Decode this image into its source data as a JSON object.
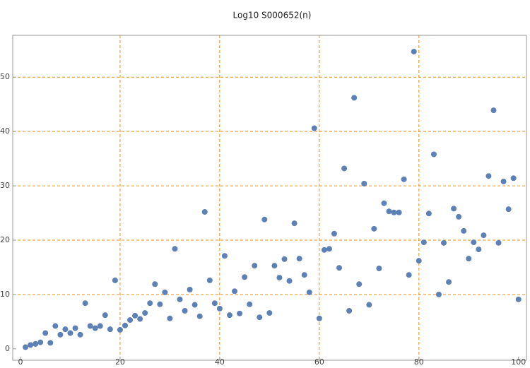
{
  "chart_data": {
    "type": "scatter",
    "title": "Log10 S000652(n)",
    "x": [
      1,
      2,
      3,
      4,
      5,
      6,
      7,
      8,
      9,
      10,
      11,
      12,
      13,
      14,
      15,
      16,
      17,
      18,
      19,
      20,
      21,
      22,
      23,
      24,
      25,
      26,
      27,
      28,
      29,
      30,
      31,
      32,
      33,
      34,
      35,
      36,
      37,
      38,
      39,
      40,
      41,
      42,
      43,
      44,
      45,
      46,
      47,
      48,
      49,
      50,
      51,
      52,
      53,
      54,
      55,
      56,
      57,
      58,
      59,
      60,
      61,
      62,
      63,
      64,
      65,
      66,
      67,
      68,
      69,
      70,
      71,
      72,
      73,
      74,
      75,
      76,
      77,
      78,
      79,
      80,
      81,
      82,
      83,
      84,
      85,
      86,
      87,
      88,
      89,
      90,
      91,
      92,
      93,
      94,
      95,
      96,
      97,
      98,
      99,
      100
    ],
    "series": [
      {
        "color": "#5e81b5",
        "values": [
          0.3,
          0.7,
          0.9,
          1.2,
          2.9,
          1.1,
          4.2,
          2.6,
          3.6,
          2.9,
          3.8,
          2.6,
          8.4,
          4.2,
          3.8,
          4.2,
          6.2,
          3.6,
          12.6,
          3.5,
          4.3,
          5.3,
          6.1,
          5.5,
          6.6,
          8.4,
          11.9,
          8.2,
          10.4,
          5.6,
          18.4,
          9.1,
          7.0,
          10.9,
          8.1,
          6.0,
          25.2,
          12.6,
          8.4,
          7.4,
          17.1,
          6.2,
          10.6,
          6.5,
          13.2,
          8.2,
          15.3,
          5.8,
          23.8,
          6.6,
          15.3,
          13.1,
          16.5,
          12.5,
          23.1,
          16.6,
          13.6,
          10.4,
          40.6,
          5.6,
          18.2,
          18.4,
          21.2,
          14.9,
          33.2,
          7.0,
          46.2,
          11.9,
          30.4,
          8.1,
          22.1,
          14.8,
          26.8,
          25.3,
          25.1,
          25.1,
          31.2,
          13.6,
          54.7,
          16.2,
          19.6,
          24.9,
          35.8,
          10.0,
          19.5,
          12.3,
          25.8,
          24.3,
          21.7,
          16.6,
          19.6,
          18.3,
          20.9,
          31.8,
          43.9,
          19.5,
          30.8,
          25.7,
          31.4,
          9.1
        ]
      }
    ],
    "xlim": [
      -1.56,
      101.6
    ],
    "ylim": [
      -2.1,
      57.7
    ],
    "xticks": [
      0,
      20,
      40,
      60,
      80,
      100
    ],
    "yticks": [
      0,
      10,
      20,
      30,
      40,
      50
    ],
    "xgrid": [
      20,
      40,
      60,
      80
    ],
    "ygrid": [
      10,
      20,
      30,
      40,
      50
    ]
  }
}
